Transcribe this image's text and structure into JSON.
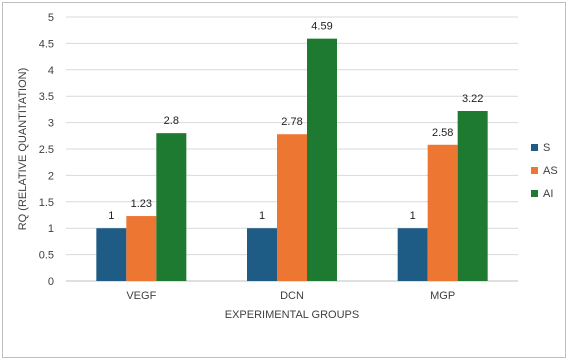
{
  "chart_data": {
    "type": "bar",
    "title": "",
    "xlabel": "EXPERIMENTAL GROUPS",
    "ylabel": "RQ (RELATIVE QUANTITATION)",
    "categories": [
      "VEGF",
      "DCN",
      "MGP"
    ],
    "ylim": [
      0,
      5
    ],
    "yticks": [
      0,
      0.5,
      1,
      1.5,
      2,
      2.5,
      3,
      3.5,
      4,
      4.5,
      5
    ],
    "grid": true,
    "legend_position": "right",
    "series": [
      {
        "name": "S",
        "color": "#1f5c85",
        "values": [
          1,
          1,
          1
        ]
      },
      {
        "name": "AS",
        "color": "#ed7633",
        "values": [
          1.23,
          2.78,
          2.58
        ]
      },
      {
        "name": "AI",
        "color": "#1e7a31",
        "values": [
          2.8,
          4.59,
          3.22
        ]
      }
    ]
  }
}
